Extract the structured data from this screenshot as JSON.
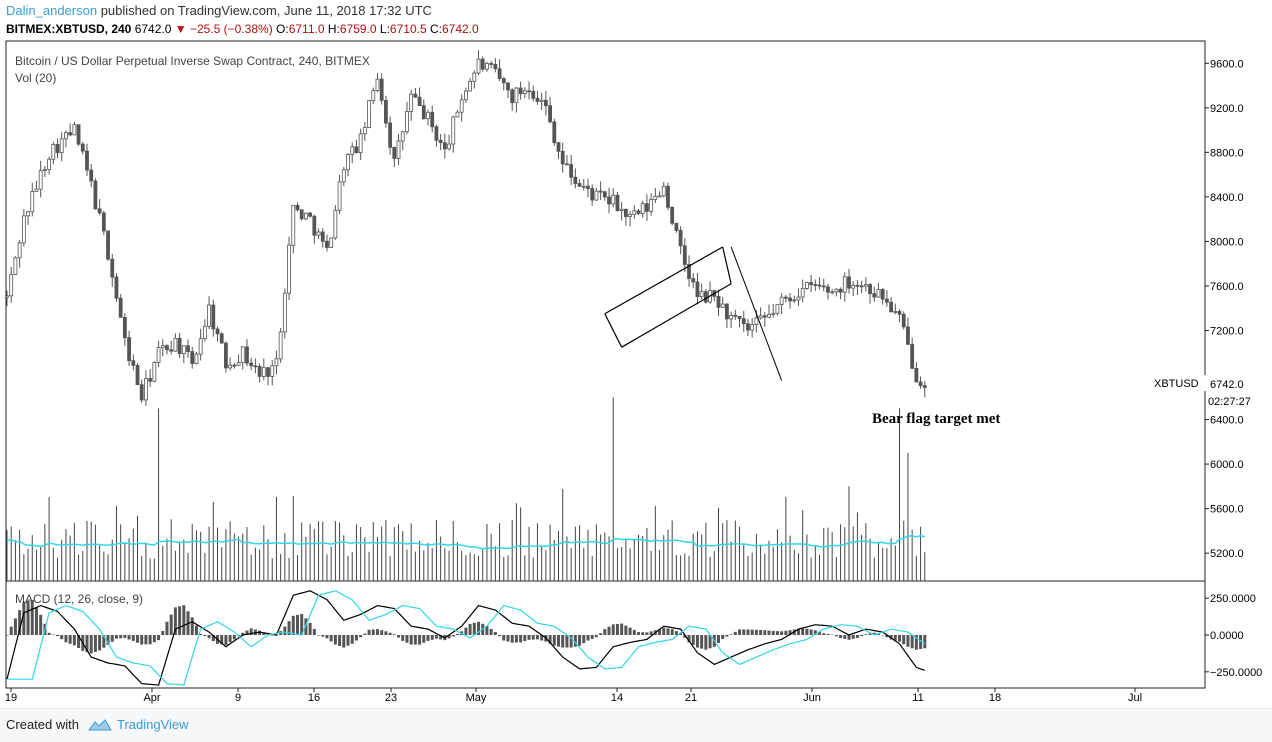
{
  "header": {
    "username": "Dalin_anderson",
    "published": "published on TradingView.com, June 11, 2018 17:32 UTC",
    "ticker": "BITMEX:XBTUSD, 240",
    "last": "6742.0",
    "change": "▼ −25.5 (−0.38%)",
    "o_label": "O:",
    "o": "6711.0",
    "h_label": "H:",
    "h": "6759.0",
    "l_label": "L:",
    "l": "6710.5",
    "c_label": "C:",
    "c": "6742.0"
  },
  "legend": {
    "title": "Bitcoin / US Dollar Perpetual Inverse Swap Contract, 240, BITMEX",
    "vol": "Vol (20)",
    "macd": "MACD (12, 26, close, 9)"
  },
  "annotation": {
    "text": "Bear flag target met"
  },
  "price_marker": {
    "symbol": "XBTUSD",
    "price": "6742.0",
    "countdown": "02:27:27"
  },
  "footer": {
    "created": "Created with",
    "brand": "TradingView"
  },
  "colors": {
    "candle": "#555555",
    "volume": "#444444",
    "vol_ma": "#33d6e6",
    "macd": "#000000",
    "signal": "#33d6e6",
    "hist": "#555555",
    "user_link": "#3a9bd5",
    "neg": "#b01010"
  },
  "chart_data": {
    "type": "candlestick",
    "symbol": "BITMEX:XBTUSD",
    "interval": "240",
    "x_tick_labels": [
      "19",
      "Apr",
      "9",
      "16",
      "23",
      "May",
      "14",
      "21",
      "Jun",
      "11",
      "18",
      "Jul"
    ],
    "price_ticks": [
      "9600.0",
      "9200.0",
      "8800.0",
      "8400.0",
      "8000.0",
      "7600.0",
      "7200.0",
      "6400.0",
      "6000.0",
      "5600.0",
      "5200.0"
    ],
    "price_range": [
      4950,
      9800
    ],
    "macd_ticks": [
      "250.0000",
      "0.0000",
      "−250.0000"
    ],
    "macd_range": [
      -360,
      360
    ],
    "price_path": [
      [
        0,
        7500
      ],
      [
        2,
        8200
      ],
      [
        5,
        8800
      ],
      [
        8,
        9000
      ],
      [
        10,
        8500
      ],
      [
        12,
        7900
      ],
      [
        14,
        7100
      ],
      [
        16,
        6600
      ],
      [
        18,
        7000
      ],
      [
        20,
        7100
      ],
      [
        22,
        6900
      ],
      [
        24,
        7400
      ],
      [
        26,
        6900
      ],
      [
        28,
        7000
      ],
      [
        30,
        6800
      ],
      [
        32,
        6900
      ],
      [
        34,
        8300
      ],
      [
        36,
        8200
      ],
      [
        38,
        7900
      ],
      [
        40,
        8700
      ],
      [
        42,
        8900
      ],
      [
        44,
        9500
      ],
      [
        46,
        8700
      ],
      [
        48,
        9300
      ],
      [
        50,
        9100
      ],
      [
        52,
        8800
      ],
      [
        54,
        9300
      ],
      [
        56,
        9600
      ],
      [
        58,
        9500
      ],
      [
        60,
        9300
      ],
      [
        62,
        9400
      ],
      [
        64,
        9200
      ],
      [
        66,
        8700
      ],
      [
        68,
        8500
      ],
      [
        70,
        8400
      ],
      [
        72,
        8350
      ],
      [
        74,
        8200
      ],
      [
        76,
        8300
      ],
      [
        78,
        8500
      ],
      [
        80,
        7900
      ],
      [
        82,
        7500
      ],
      [
        84,
        7500
      ],
      [
        86,
        7300
      ],
      [
        88,
        7200
      ],
      [
        90,
        7300
      ],
      [
        92,
        7450
      ],
      [
        94,
        7550
      ],
      [
        96,
        7600
      ],
      [
        98,
        7550
      ],
      [
        100,
        7650
      ],
      [
        102,
        7600
      ],
      [
        104,
        7500
      ],
      [
        106,
        7300
      ],
      [
        108,
        6800
      ],
      [
        109,
        6742
      ]
    ],
    "volume_spikes": [
      [
        18,
        6500
      ],
      [
        72,
        6600
      ],
      [
        100,
        5800
      ],
      [
        106,
        6500
      ],
      [
        107,
        6100
      ]
    ],
    "macd_path": [
      [
        0,
        -300
      ],
      [
        2,
        150
      ],
      [
        4,
        200
      ],
      [
        6,
        160
      ],
      [
        8,
        40
      ],
      [
        10,
        -150
      ],
      [
        12,
        -190
      ],
      [
        14,
        -210
      ],
      [
        16,
        -330
      ],
      [
        18,
        -340
      ],
      [
        20,
        40
      ],
      [
        22,
        90
      ],
      [
        24,
        20
      ],
      [
        26,
        -80
      ],
      [
        28,
        0
      ],
      [
        30,
        20
      ],
      [
        32,
        0
      ],
      [
        34,
        270
      ],
      [
        36,
        300
      ],
      [
        38,
        240
      ],
      [
        40,
        100
      ],
      [
        42,
        140
      ],
      [
        44,
        200
      ],
      [
        46,
        180
      ],
      [
        48,
        60
      ],
      [
        50,
        40
      ],
      [
        52,
        -20
      ],
      [
        54,
        60
      ],
      [
        56,
        200
      ],
      [
        58,
        170
      ],
      [
        60,
        80
      ],
      [
        62,
        60
      ],
      [
        64,
        -20
      ],
      [
        66,
        -150
      ],
      [
        68,
        -230
      ],
      [
        70,
        -220
      ],
      [
        72,
        -80
      ],
      [
        74,
        -50
      ],
      [
        76,
        -30
      ],
      [
        78,
        60
      ],
      [
        80,
        40
      ],
      [
        82,
        -120
      ],
      [
        84,
        -200
      ],
      [
        86,
        -150
      ],
      [
        88,
        -100
      ],
      [
        90,
        -60
      ],
      [
        92,
        -30
      ],
      [
        94,
        40
      ],
      [
        96,
        70
      ],
      [
        98,
        60
      ],
      [
        100,
        0
      ],
      [
        102,
        40
      ],
      [
        104,
        20
      ],
      [
        106,
        -60
      ],
      [
        108,
        -220
      ],
      [
        109,
        -240
      ]
    ],
    "signal_lag": 3,
    "flag_channel": [
      [
        [
          71,
          7350
        ],
        [
          85,
          7950
        ]
      ],
      [
        [
          73,
          7050
        ],
        [
          86,
          7620
        ]
      ]
    ],
    "flag_target_line": [
      [
        86,
        7950
      ],
      [
        92,
        6750
      ]
    ],
    "grid": false,
    "legend_position": "top-left"
  }
}
